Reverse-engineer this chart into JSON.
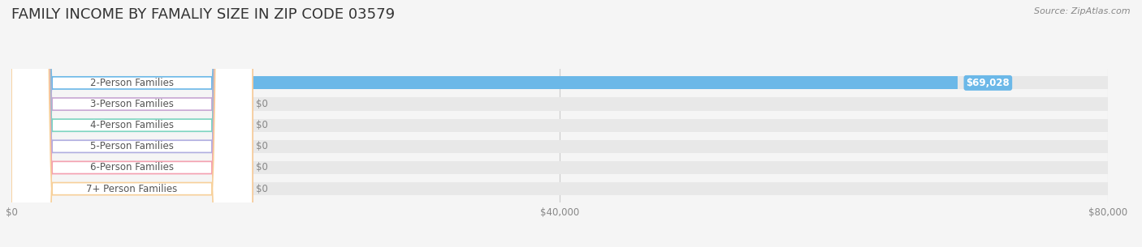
{
  "title": "FAMILY INCOME BY FAMALIY SIZE IN ZIP CODE 03579",
  "source": "Source: ZipAtlas.com",
  "categories": [
    "2-Person Families",
    "3-Person Families",
    "4-Person Families",
    "5-Person Families",
    "6-Person Families",
    "7+ Person Families"
  ],
  "values": [
    69028,
    0,
    0,
    0,
    0,
    0
  ],
  "bar_colors": [
    "#6bb8e8",
    "#c9a8d4",
    "#7dd4c0",
    "#b0aee0",
    "#f4a0b0",
    "#f7d09a"
  ],
  "label_colors": [
    "#6bb8e8",
    "#c9a8d4",
    "#7dd4c0",
    "#b0aee0",
    "#f4a0b0",
    "#f7d09a"
  ],
  "value_labels": [
    "$69,028",
    "$0",
    "$0",
    "$0",
    "$0",
    "$0"
  ],
  "xlim": [
    0,
    80000
  ],
  "xticks": [
    0,
    40000,
    80000
  ],
  "xtick_labels": [
    "$0",
    "$40,000",
    "$80,000"
  ],
  "bg_color": "#f5f5f5",
  "bar_bg_color": "#e8e8e8",
  "title_fontsize": 13,
  "label_fontsize": 8.5,
  "value_fontsize": 8.5,
  "tick_fontsize": 8.5,
  "figwidth": 14.06,
  "figheight": 3.05
}
